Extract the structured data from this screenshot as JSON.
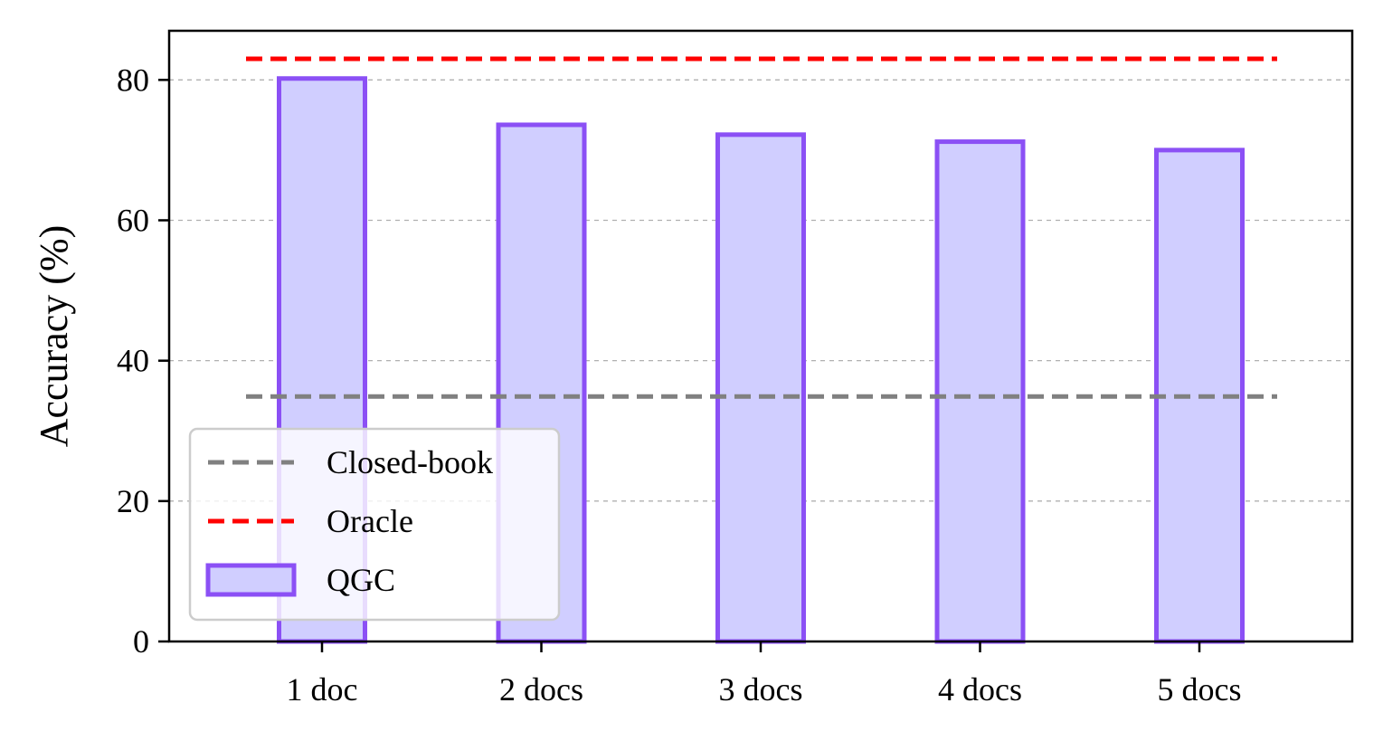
{
  "chart_data": {
    "type": "bar",
    "categories": [
      "1 doc",
      "2 docs",
      "3 docs",
      "4 docs",
      "5 docs"
    ],
    "series": [
      {
        "name": "QGC",
        "values": [
          80.2,
          73.6,
          72.2,
          71.2,
          70.0
        ]
      }
    ],
    "reference_lines": [
      {
        "name": "Closed-book",
        "value": 34.9,
        "color": "#808080",
        "style": "dashed"
      },
      {
        "name": "Oracle",
        "value": 83.0,
        "color": "#ff0000",
        "style": "dashed"
      }
    ],
    "ylabel": "Accuracy (%)",
    "xlabel": "",
    "ylim": [
      0,
      87
    ],
    "yticks": [
      0,
      20,
      40,
      60,
      80
    ],
    "grid": "horizontal dashed",
    "legend_position": "lower-left",
    "legend": [
      "Closed-book",
      "Oracle",
      "QGC"
    ],
    "colors": {
      "bar_fill": "#d0ceff",
      "bar_edge": "#8b50f5",
      "grid": "#b0b0b0",
      "axis": "#000000"
    }
  }
}
